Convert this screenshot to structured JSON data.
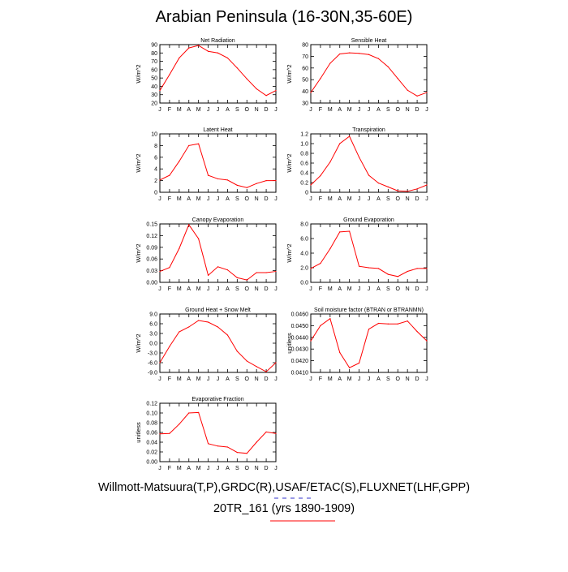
{
  "title": "Arabian Peninsula (16-30N,35-60E)",
  "footer": {
    "sources": "Willmott-Matsuura(T,P),GRDC(R),USAF/ETAC(S),FLUXNET(LHF,GPP)",
    "run": "20TR_161 (yrs 1890-1909)"
  },
  "colors": {
    "line": "#ff0000",
    "deco_blue": "#3333cc",
    "deco_red": "#ff0000"
  },
  "chart_data": [
    {
      "type": "line",
      "title": "Net Radiation",
      "ylabel": "W/m^2",
      "categories": [
        "J",
        "F",
        "M",
        "A",
        "M",
        "J",
        "J",
        "A",
        "S",
        "O",
        "N",
        "D",
        "J"
      ],
      "yticks": [
        "20",
        "30",
        "40",
        "50",
        "60",
        "70",
        "80",
        "90"
      ],
      "ylim": [
        20,
        90
      ],
      "values": [
        35,
        54,
        74,
        86,
        89,
        82,
        80,
        74,
        62,
        49,
        37,
        29,
        35
      ]
    },
    {
      "type": "line",
      "title": "Sensible Heat",
      "ylabel": "W/m^2",
      "categories": [
        "J",
        "F",
        "M",
        "A",
        "M",
        "J",
        "J",
        "A",
        "S",
        "O",
        "N",
        "D",
        "J"
      ],
      "yticks": [
        "30",
        "40",
        "50",
        "60",
        "70",
        "80"
      ],
      "ylim": [
        30,
        80
      ],
      "values": [
        39,
        51,
        64,
        72,
        73,
        72.5,
        71.5,
        68,
        61,
        51,
        41,
        36,
        39
      ]
    },
    {
      "type": "line",
      "title": "Latent Heat",
      "ylabel": "W/m^2",
      "categories": [
        "J",
        "F",
        "M",
        "A",
        "M",
        "J",
        "J",
        "A",
        "S",
        "O",
        "N",
        "D",
        "J"
      ],
      "yticks": [
        "0",
        "2",
        "4",
        "6",
        "8",
        "10"
      ],
      "ylim": [
        0,
        10
      ],
      "values": [
        2.1,
        2.9,
        5.3,
        8.0,
        8.3,
        2.9,
        2.3,
        2.1,
        1.2,
        0.8,
        1.5,
        2.0,
        2.0
      ]
    },
    {
      "type": "line",
      "title": "Transpiration",
      "ylabel": "W/m^2",
      "categories": [
        "J",
        "F",
        "M",
        "A",
        "M",
        "J",
        "J",
        "A",
        "S",
        "O",
        "N",
        "D",
        "J"
      ],
      "yticks": [
        "0",
        "0.2",
        "0.4",
        "0.6",
        "0.8",
        "1.0",
        "1.2"
      ],
      "ylim": [
        0,
        1.2
      ],
      "values": [
        0.15,
        0.34,
        0.62,
        1.0,
        1.15,
        0.72,
        0.35,
        0.19,
        0.11,
        0.03,
        0.02,
        0.07,
        0.15
      ]
    },
    {
      "type": "line",
      "title": "Canopy Evaporation",
      "ylabel": "W/m^2",
      "categories": [
        "J",
        "F",
        "M",
        "A",
        "M",
        "J",
        "J",
        "A",
        "S",
        "O",
        "N",
        "D",
        "J"
      ],
      "yticks": [
        "0.00",
        "0.03",
        "0.06",
        "0.09",
        "0.12",
        "0.15"
      ],
      "ylim": [
        0,
        0.15
      ],
      "values": [
        0.028,
        0.038,
        0.087,
        0.148,
        0.112,
        0.018,
        0.04,
        0.032,
        0.012,
        0.006,
        0.025,
        0.025,
        0.028
      ]
    },
    {
      "type": "line",
      "title": "Ground Evaporation",
      "ylabel": "W/m^2",
      "categories": [
        "J",
        "F",
        "M",
        "A",
        "M",
        "J",
        "J",
        "A",
        "S",
        "O",
        "N",
        "D",
        "J"
      ],
      "yticks": [
        "0.0",
        "2.0",
        "4.0",
        "6.0",
        "8.0"
      ],
      "ylim": [
        0,
        8
      ],
      "values": [
        1.9,
        2.6,
        4.6,
        6.9,
        7.0,
        2.2,
        2.0,
        1.9,
        1.1,
        0.8,
        1.5,
        1.9,
        1.9
      ]
    },
    {
      "type": "line",
      "title": "Ground Heat + Snow Melt",
      "ylabel": "W/m^2",
      "categories": [
        "J",
        "F",
        "M",
        "A",
        "M",
        "J",
        "J",
        "A",
        "S",
        "O",
        "N",
        "D",
        "J"
      ],
      "yticks": [
        "-9.0",
        "-6.0",
        "-3.0",
        "0.0",
        "3.0",
        "6.0",
        "9.0"
      ],
      "ylim": [
        -9,
        9
      ],
      "values": [
        -6.0,
        -1.0,
        3.5,
        5.0,
        7.0,
        6.5,
        5.0,
        2.5,
        -2.5,
        -5.5,
        -7.2,
        -8.8,
        -6.0
      ]
    },
    {
      "type": "line",
      "title": "Soil moisture factor (BTRAN or BTRANMN)",
      "ylabel": "unitless",
      "categories": [
        "J",
        "F",
        "M",
        "A",
        "M",
        "J",
        "J",
        "A",
        "S",
        "O",
        "N",
        "D",
        "J"
      ],
      "yticks": [
        "0.0410",
        "0.0420",
        "0.0430",
        "0.0440",
        "0.0450",
        "0.0460"
      ],
      "ylim": [
        0.041,
        0.046
      ],
      "values": [
        0.0437,
        0.045,
        0.0456,
        0.0427,
        0.0414,
        0.0418,
        0.0447,
        0.0452,
        0.04515,
        0.04515,
        0.0454,
        0.0445,
        0.0437
      ]
    },
    {
      "type": "line",
      "title": "Evaporative Fraction",
      "ylabel": "unitless",
      "categories": [
        "J",
        "F",
        "M",
        "A",
        "M",
        "J",
        "J",
        "A",
        "S",
        "O",
        "N",
        "D",
        "J"
      ],
      "yticks": [
        "0.00",
        "0.02",
        "0.04",
        "0.06",
        "0.08",
        "0.10",
        "0.12"
      ],
      "ylim": [
        0,
        0.12
      ],
      "values": [
        0.057,
        0.058,
        0.077,
        0.1,
        0.101,
        0.037,
        0.032,
        0.03,
        0.019,
        0.017,
        0.04,
        0.061,
        0.058
      ]
    }
  ]
}
